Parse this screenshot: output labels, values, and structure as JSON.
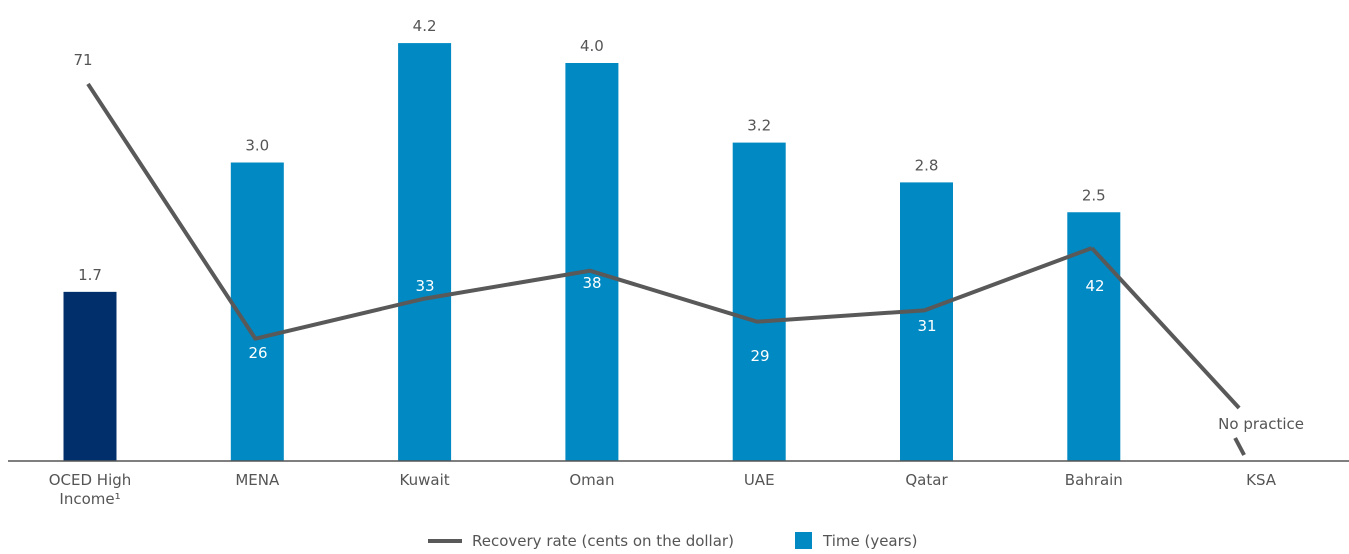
{
  "chart_data": {
    "type": "bar",
    "categories": [
      [
        "OCED High",
        "Income¹"
      ],
      [
        "MENA"
      ],
      [
        "Kuwait"
      ],
      [
        "Oman"
      ],
      [
        "UAE"
      ],
      [
        "Qatar"
      ],
      [
        "Bahrain"
      ],
      [
        "KSA"
      ]
    ],
    "series": [
      {
        "name": "Time (years)",
        "type": "bar",
        "values": [
          1.7,
          3.0,
          4.2,
          4.0,
          3.2,
          2.8,
          2.5,
          null
        ],
        "labels": [
          "1.7",
          "3.0",
          "4.2",
          "4.0",
          "3.2",
          "2.8",
          "2.5",
          ""
        ],
        "colors": [
          "#002f6c",
          "#0089c2",
          "#0089c2",
          "#0089c2",
          "#0089c2",
          "#0089c2",
          "#0089c2",
          "#0089c2"
        ]
      },
      {
        "name": "Recovery rate (cents on the dollar)",
        "type": "line",
        "values": [
          71,
          26,
          33,
          38,
          29,
          31,
          42,
          null
        ],
        "labels": [
          "71",
          "26",
          "33",
          "38",
          "29",
          "31",
          "42",
          ""
        ],
        "color": "#595959"
      }
    ],
    "annotations": [
      "No practice"
    ],
    "legend_position": "bottom",
    "grid": false
  }
}
